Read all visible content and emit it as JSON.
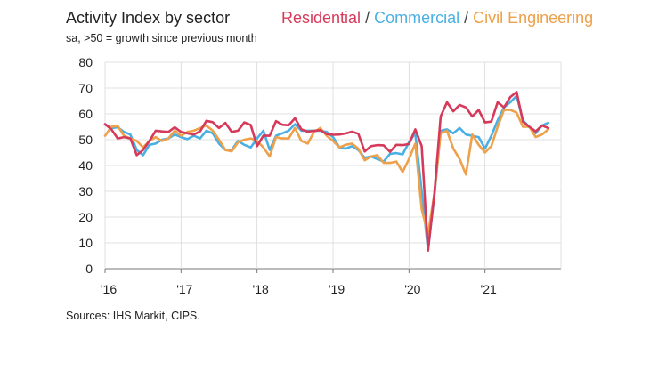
{
  "chart_data": {
    "type": "line",
    "title": "Activity Index by sector",
    "subtitle": "sa, >50 = growth since previous month",
    "source": "Sources: IHS Markit, CIPS.",
    "xlabel": "",
    "ylabel": "",
    "ylim": [
      0,
      80
    ],
    "yticks": [
      0,
      10,
      20,
      30,
      40,
      50,
      60,
      70,
      80
    ],
    "xlim": [
      2016,
      2022
    ],
    "xticks": [
      {
        "value": 2016,
        "label": "'16"
      },
      {
        "value": 2017,
        "label": "'17"
      },
      {
        "value": 2018,
        "label": "'18"
      },
      {
        "value": 2019,
        "label": "'19"
      },
      {
        "value": 2020,
        "label": "'20"
      },
      {
        "value": 2021,
        "label": "'21"
      }
    ],
    "grid": true,
    "legend_separator": " / ",
    "series": [
      {
        "name": "Residential",
        "color": "#d63a5a",
        "start": 2016.0,
        "step_months": 1,
        "values": [
          56,
          54,
          50.5,
          51,
          50.5,
          44,
          46,
          49.5,
          53.5,
          53.2,
          53,
          54.8,
          53,
          52.5,
          52,
          53.2,
          57.3,
          56.8,
          54.5,
          56.5,
          53,
          53.5,
          56.7,
          55.7,
          47.5,
          51.6,
          51.5,
          57.2,
          55.8,
          55.6,
          58.3,
          54,
          53.1,
          53.4,
          53.7,
          52.2,
          51.9,
          52,
          52.4,
          53.1,
          52.3,
          45.4,
          47.5,
          47.9,
          47.8,
          45.3,
          48,
          47.9,
          48.3,
          54,
          47.5,
          7,
          29,
          59,
          64.5,
          61,
          63.5,
          62.5,
          59,
          61.5,
          56.7,
          57,
          64.5,
          62.5,
          66.5,
          68.5,
          57,
          55,
          53.2,
          55.5,
          54.5
        ]
      },
      {
        "name": "Commercial",
        "color": "#4ab0e4",
        "start": 2016.0,
        "step_months": 1,
        "values": [
          56,
          54.5,
          54.8,
          53,
          52,
          46,
          44,
          48,
          48.5,
          50,
          50.5,
          52,
          51,
          50.2,
          51.5,
          50.5,
          53.5,
          52.5,
          48.5,
          46,
          46,
          49.5,
          48,
          47,
          50.5,
          53.5,
          46,
          51.5,
          52.5,
          53.5,
          56,
          53.5,
          53.5,
          53.5,
          53.5,
          53,
          51,
          47,
          46.5,
          47.5,
          46,
          43,
          43.5,
          42.5,
          41.5,
          44.5,
          44.8,
          44.3,
          49,
          52.5,
          30,
          7.5,
          28,
          53.5,
          54,
          52.5,
          54.5,
          52,
          51.5,
          51,
          46.5,
          51.5,
          57.5,
          62.5,
          64.5,
          67,
          57.5,
          55,
          52.5,
          55.5,
          56.5
        ]
      },
      {
        "name": "Civil Engineering",
        "color": "#eea04a",
        "start": 2016.0,
        "step_months": 1,
        "values": [
          51.5,
          55,
          55.3,
          51.5,
          50.5,
          49.5,
          47,
          49.5,
          51,
          49.5,
          50.5,
          53.5,
          51.5,
          53,
          53.5,
          54.5,
          55.5,
          53.5,
          50,
          46,
          45.5,
          49,
          50,
          50.5,
          49.5,
          47,
          43.5,
          51,
          50.5,
          50.5,
          54.5,
          49.5,
          48.5,
          53,
          54.5,
          51.5,
          49.5,
          47,
          48,
          48.5,
          46.5,
          42,
          43.5,
          44,
          41,
          41,
          41.5,
          37.5,
          42.5,
          48.5,
          23,
          13.5,
          29,
          52.5,
          53.5,
          46.5,
          42.5,
          36.5,
          52,
          48,
          45,
          47.5,
          55,
          61.5,
          61.5,
          60.5,
          55,
          55,
          51,
          52,
          54
        ]
      }
    ]
  }
}
